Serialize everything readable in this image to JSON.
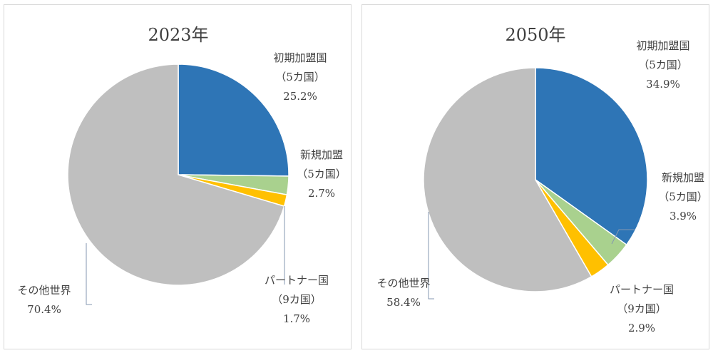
{
  "chart_data": [
    {
      "type": "pie",
      "title": "2023年",
      "slices": [
        {
          "name": "初期加盟国",
          "sub": "（5カ国）",
          "value": 25.2,
          "label": "25.2%",
          "color": "#2E75B6"
        },
        {
          "name": "新規加盟",
          "sub": "（5カ国）",
          "value": 2.7,
          "label": "2.7%",
          "color": "#A9D18E"
        },
        {
          "name": "パートナー国",
          "sub": "（9カ国）",
          "value": 1.7,
          "label": "1.7%",
          "color": "#FFC000"
        },
        {
          "name": "その他世界",
          "sub": "",
          "value": 70.4,
          "label": "70.4%",
          "color": "#BFBFBF"
        }
      ]
    },
    {
      "type": "pie",
      "title": "2050年",
      "slices": [
        {
          "name": "初期加盟国",
          "sub": "（5カ国）",
          "value": 34.9,
          "label": "34.9%",
          "color": "#2E75B6"
        },
        {
          "name": "新規加盟",
          "sub": "（5カ国）",
          "value": 3.9,
          "label": "3.9%",
          "color": "#A9D18E"
        },
        {
          "name": "パートナー国",
          "sub": "（9カ国）",
          "value": 2.9,
          "label": "2.9%",
          "color": "#FFC000"
        },
        {
          "name": "その他世界",
          "sub": "",
          "value": 58.4,
          "label": "58.4%",
          "color": "#BFBFBF"
        }
      ]
    }
  ]
}
